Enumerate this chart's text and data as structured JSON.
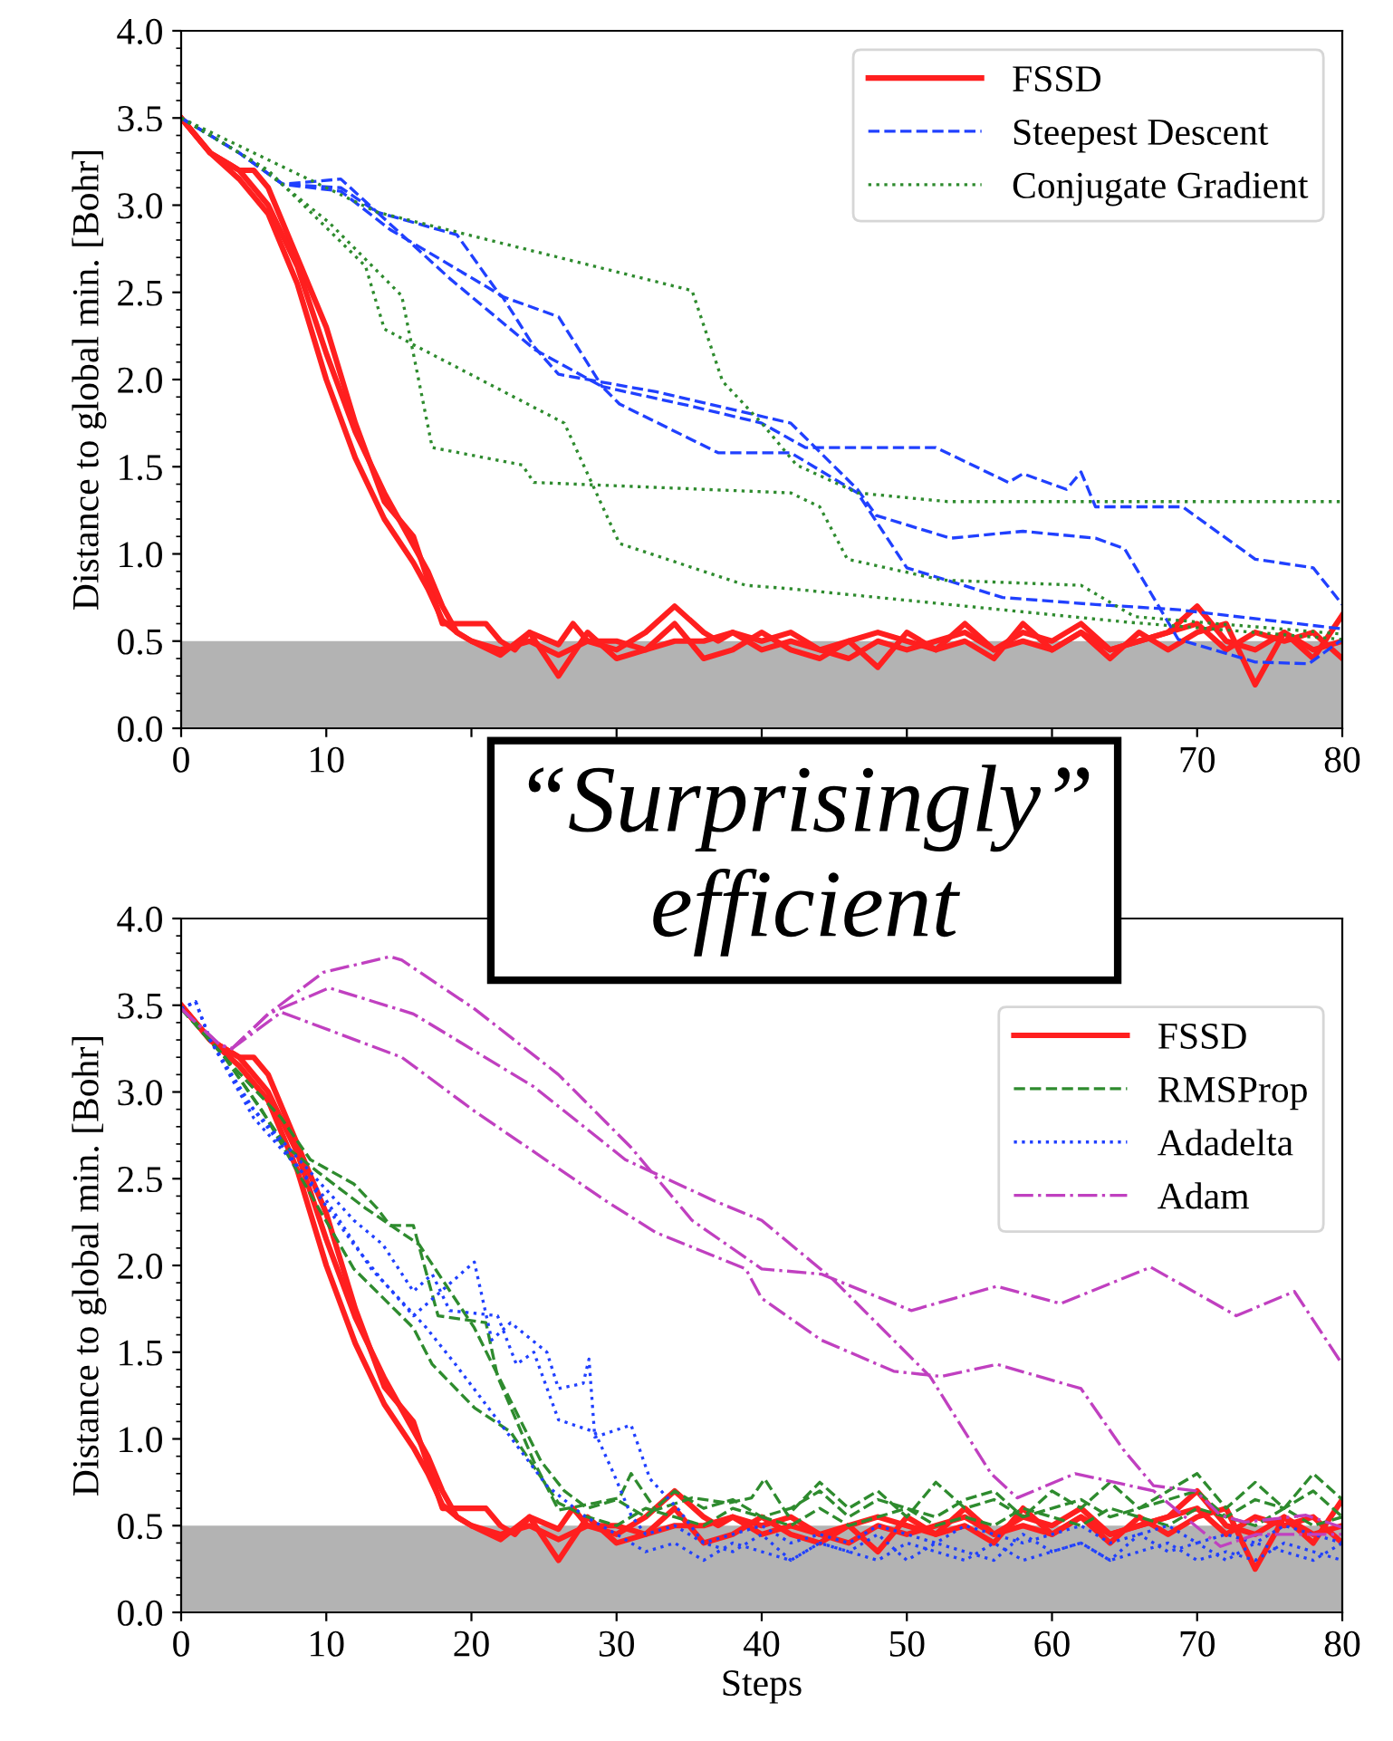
{
  "chart_data": [
    {
      "type": "line",
      "ylabel": "Distance to global min. [Bohr]",
      "xlim": [
        0,
        80
      ],
      "xticks": [
        0,
        10,
        {
          "value": 20,
          "label": null
        },
        {
          "value": 30,
          "label": null
        },
        {
          "value": 40,
          "label": null
        },
        {
          "value": 50,
          "label": null
        },
        {
          "value": 60,
          "label": null
        },
        70,
        80
      ],
      "ylim": [
        0,
        4
      ],
      "yticks": [
        {
          "value": 0,
          "label": "0.0"
        },
        0.5,
        {
          "value": 1,
          "label": "1.0"
        },
        1.5,
        {
          "value": 2,
          "label": "2.0"
        },
        2.5,
        {
          "value": 3,
          "label": "3.0"
        },
        3.5,
        {
          "value": 4,
          "label": "4.0"
        }
      ],
      "legend": "top right",
      "grid": false,
      "bands": [
        {
          "axis": "y",
          "from": 0,
          "to": 0.5,
          "color": "#b3b3b3"
        }
      ],
      "annotations": [
        "“Surprisingly”\nefficient"
      ],
      "series": [
        {
          "name": "FSSD",
          "color": "#ff1f1f",
          "line_style": "solid",
          "x": [
            0,
            2,
            4,
            5,
            6,
            8,
            10,
            12,
            14,
            15,
            16,
            17,
            18,
            20,
            21,
            22,
            23,
            24,
            26,
            27,
            28,
            30,
            32,
            34,
            36,
            37,
            38,
            40,
            42,
            44,
            46,
            48,
            50,
            52,
            54,
            56,
            58,
            60,
            62,
            64,
            66,
            68,
            70,
            72,
            74,
            76,
            78,
            80
          ],
          "values": [
            3.5,
            3.3,
            3.2,
            3.2,
            3.1,
            2.7,
            2.3,
            1.75,
            1.3,
            1.2,
            1.1,
            0.85,
            0.6,
            0.6,
            0.6,
            0.5,
            0.45,
            0.55,
            0.48,
            0.6,
            0.5,
            0.45,
            0.55,
            0.7,
            0.55,
            0.5,
            0.55,
            0.5,
            0.55,
            0.45,
            0.5,
            0.55,
            0.5,
            0.45,
            0.6,
            0.45,
            0.55,
            0.5,
            0.6,
            0.45,
            0.5,
            0.55,
            0.7,
            0.5,
            0.45,
            0.55,
            0.4,
            0.65
          ]
        },
        {
          "color": "#ff1f1f",
          "line_style": "solid",
          "x": [
            0,
            2,
            4,
            6,
            8,
            10,
            12,
            14,
            16,
            17,
            18,
            19,
            20,
            22,
            24,
            26,
            28,
            30,
            32,
            34,
            36,
            38,
            40,
            42,
            44,
            46,
            48,
            50,
            52,
            54,
            56,
            58,
            60,
            62,
            64,
            66,
            68,
            70,
            72,
            74,
            76,
            78,
            80
          ],
          "values": [
            3.5,
            3.3,
            3.15,
            2.95,
            2.55,
            2.0,
            1.55,
            1.2,
            0.95,
            0.8,
            0.62,
            0.55,
            0.5,
            0.42,
            0.55,
            0.3,
            0.55,
            0.4,
            0.45,
            0.6,
            0.4,
            0.45,
            0.55,
            0.45,
            0.4,
            0.5,
            0.35,
            0.55,
            0.45,
            0.5,
            0.4,
            0.6,
            0.45,
            0.55,
            0.4,
            0.55,
            0.45,
            0.55,
            0.6,
            0.25,
            0.55,
            0.45,
            0.5
          ]
        },
        {
          "color": "#ff1f1f",
          "line_style": "solid",
          "x": [
            0,
            2,
            4,
            6,
            8,
            10,
            12,
            14,
            16,
            17,
            18,
            19,
            20,
            22,
            24,
            26,
            28,
            30,
            32,
            34,
            36,
            38,
            40,
            42,
            44,
            46,
            48,
            50,
            52,
            54,
            56,
            58,
            60,
            62,
            64,
            66,
            68,
            70,
            72,
            74,
            76,
            78,
            80
          ],
          "values": [
            3.5,
            3.3,
            3.2,
            3.0,
            2.65,
            2.15,
            1.7,
            1.35,
            1.05,
            0.9,
            0.7,
            0.55,
            0.5,
            0.45,
            0.5,
            0.42,
            0.5,
            0.5,
            0.45,
            0.5,
            0.5,
            0.55,
            0.45,
            0.5,
            0.45,
            0.4,
            0.5,
            0.45,
            0.5,
            0.55,
            0.45,
            0.5,
            0.45,
            0.55,
            0.45,
            0.5,
            0.55,
            0.6,
            0.45,
            0.55,
            0.5,
            0.55,
            0.4
          ]
        },
        {
          "name": "Steepest Descent",
          "color": "#2040ff",
          "line_style": "dashed",
          "x": [
            0,
            4,
            7,
            11,
            13.5,
            19,
            22,
            26,
            29,
            35,
            40,
            43,
            52,
            57,
            58,
            61,
            62,
            63,
            69,
            74,
            78,
            80
          ],
          "values": [
            3.5,
            3.3,
            3.12,
            3.15,
            2.96,
            2.83,
            2.48,
            2.36,
            1.96,
            1.85,
            1.75,
            1.61,
            1.61,
            1.41,
            1.46,
            1.37,
            1.47,
            1.27,
            1.27,
            0.97,
            0.92,
            0.71
          ]
        },
        {
          "color": "#2040ff",
          "line_style": "dashed",
          "x": [
            0,
            4,
            7,
            11,
            13.5,
            18.5,
            24.4,
            29,
            30.2,
            37,
            42,
            46.6,
            50,
            56.6,
            63,
            68.7,
            80
          ],
          "values": [
            3.5,
            3.3,
            3.12,
            3.1,
            2.96,
            2.58,
            2.17,
            1.96,
            1.86,
            1.58,
            1.58,
            1.35,
            0.92,
            0.75,
            0.71,
            0.68,
            0.57
          ]
        },
        {
          "color": "#2040ff",
          "line_style": "dashed",
          "x": [
            0,
            4,
            7,
            11,
            14.4,
            22.1,
            24.3,
            26,
            32.7,
            42,
            46.6,
            47.9,
            53,
            58,
            63,
            65,
            68.7,
            74,
            77.7,
            80
          ],
          "values": [
            3.5,
            3.3,
            3.12,
            3.08,
            2.86,
            2.48,
            2.19,
            2.03,
            1.93,
            1.75,
            1.37,
            1.22,
            1.09,
            1.13,
            1.09,
            1.03,
            0.51,
            0.38,
            0.37,
            0.51
          ]
        },
        {
          "name": "Conjugate Gradient",
          "color": "#2e8b2e",
          "line_style": "dotted",
          "x": [
            0,
            13.5,
            35.2,
            37.3,
            40,
            42.4,
            46.6,
            52.8,
            80
          ],
          "values": [
            3.5,
            2.96,
            2.51,
            1.99,
            1.75,
            1.51,
            1.35,
            1.3,
            1.3
          ]
        },
        {
          "color": "#2e8b2e",
          "line_style": "dotted",
          "x": [
            0,
            5,
            10.2,
            15.2,
            17.3,
            23.5,
            24.3,
            42,
            44,
            45.9,
            52.4,
            62,
            65.7,
            80
          ],
          "values": [
            3.5,
            3.25,
            2.9,
            2.48,
            1.61,
            1.51,
            1.41,
            1.35,
            1.27,
            0.97,
            0.85,
            0.82,
            0.64,
            0.54
          ]
        },
        {
          "color": "#2e8b2e",
          "line_style": "dotted",
          "x": [
            0,
            6,
            12.7,
            14,
            16,
            26.4,
            30.2,
            38.9,
            42,
            65,
            80
          ],
          "values": [
            3.5,
            3.2,
            2.65,
            2.29,
            2.2,
            1.75,
            1.06,
            0.82,
            0.8,
            0.61,
            0.51
          ]
        }
      ]
    },
    {
      "type": "line",
      "xlabel": "Steps",
      "ylabel": "Distance to global min. [Bohr]",
      "xlim": [
        0,
        80
      ],
      "xticks": [
        0,
        10,
        20,
        30,
        40,
        50,
        60,
        70,
        80
      ],
      "ylim": [
        0,
        4
      ],
      "yticks": [
        {
          "value": 0,
          "label": "0.0"
        },
        0.5,
        {
          "value": 1,
          "label": "1.0"
        },
        1.5,
        {
          "value": 2,
          "label": "2.0"
        },
        2.5,
        {
          "value": 3,
          "label": "3.0"
        },
        3.5,
        {
          "value": 4,
          "label": "4.0"
        }
      ],
      "legend": "top right",
      "grid": false,
      "bands": [
        {
          "axis": "y",
          "from": 0,
          "to": 0.5,
          "color": "#b3b3b3"
        }
      ],
      "series": [
        {
          "name": "FSSD",
          "color": "#ff1f1f",
          "line_style": "solid",
          "x": [
            0,
            2,
            4,
            5,
            6,
            8,
            10,
            12,
            14,
            15,
            16,
            17,
            18,
            20,
            21,
            22,
            23,
            24,
            26,
            27,
            28,
            30,
            32,
            34,
            36,
            37,
            38,
            40,
            42,
            44,
            46,
            48,
            50,
            52,
            54,
            56,
            58,
            60,
            62,
            64,
            66,
            68,
            70,
            72,
            74,
            76,
            78,
            80
          ],
          "values": [
            3.5,
            3.3,
            3.2,
            3.2,
            3.1,
            2.7,
            2.3,
            1.75,
            1.3,
            1.2,
            1.1,
            0.85,
            0.6,
            0.6,
            0.6,
            0.5,
            0.45,
            0.55,
            0.48,
            0.6,
            0.5,
            0.45,
            0.55,
            0.7,
            0.55,
            0.5,
            0.55,
            0.5,
            0.55,
            0.45,
            0.5,
            0.55,
            0.5,
            0.45,
            0.6,
            0.45,
            0.55,
            0.5,
            0.6,
            0.45,
            0.5,
            0.55,
            0.7,
            0.5,
            0.45,
            0.55,
            0.4,
            0.65
          ]
        },
        {
          "color": "#ff1f1f",
          "line_style": "solid",
          "x": [
            0,
            2,
            4,
            6,
            8,
            10,
            12,
            14,
            16,
            17,
            18,
            19,
            20,
            22,
            24,
            26,
            28,
            30,
            32,
            34,
            36,
            38,
            40,
            42,
            44,
            46,
            48,
            50,
            52,
            54,
            56,
            58,
            60,
            62,
            64,
            66,
            68,
            70,
            72,
            74,
            76,
            78,
            80
          ],
          "values": [
            3.5,
            3.3,
            3.15,
            2.95,
            2.55,
            2.0,
            1.55,
            1.2,
            0.95,
            0.8,
            0.62,
            0.55,
            0.5,
            0.42,
            0.55,
            0.3,
            0.55,
            0.4,
            0.45,
            0.6,
            0.4,
            0.45,
            0.55,
            0.45,
            0.4,
            0.5,
            0.35,
            0.55,
            0.45,
            0.5,
            0.4,
            0.6,
            0.45,
            0.55,
            0.4,
            0.55,
            0.45,
            0.55,
            0.6,
            0.25,
            0.55,
            0.45,
            0.5
          ]
        },
        {
          "color": "#ff1f1f",
          "line_style": "solid",
          "x": [
            0,
            2,
            4,
            6,
            8,
            10,
            12,
            14,
            16,
            17,
            18,
            19,
            20,
            22,
            24,
            26,
            28,
            30,
            32,
            34,
            36,
            38,
            40,
            42,
            44,
            46,
            48,
            50,
            52,
            54,
            56,
            58,
            60,
            62,
            64,
            66,
            68,
            70,
            72,
            74,
            76,
            78,
            80
          ],
          "values": [
            3.5,
            3.3,
            3.2,
            3.0,
            2.65,
            2.15,
            1.7,
            1.35,
            1.05,
            0.9,
            0.7,
            0.55,
            0.5,
            0.45,
            0.5,
            0.42,
            0.5,
            0.5,
            0.45,
            0.5,
            0.5,
            0.55,
            0.45,
            0.5,
            0.45,
            0.4,
            0.5,
            0.45,
            0.5,
            0.55,
            0.45,
            0.5,
            0.45,
            0.55,
            0.45,
            0.5,
            0.55,
            0.6,
            0.45,
            0.55,
            0.5,
            0.55,
            0.4
          ]
        },
        {
          "name": "RMSProp",
          "color": "#2e8b2e",
          "line_style": "dashed",
          "x": [
            0,
            1,
            3.1,
            6.9,
            8.9,
            11.9,
            13.5,
            14.4,
            16,
            17.7,
            21,
            21.8,
            24.3,
            26,
            28.5,
            30.2,
            31,
            32.7,
            35.2,
            37.7,
            39.3,
            40.2,
            41.8,
            44,
            46,
            48,
            50,
            52,
            54,
            56,
            58,
            60,
            62,
            64,
            66,
            68,
            70,
            72,
            74,
            76,
            78,
            80
          ],
          "values": [
            3.48,
            3.4,
            3.19,
            2.85,
            2.61,
            2.47,
            2.33,
            2.23,
            2.23,
            1.71,
            1.67,
            1.36,
            0.87,
            0.59,
            0.63,
            0.66,
            0.8,
            0.59,
            0.66,
            0.63,
            0.66,
            0.77,
            0.56,
            0.75,
            0.6,
            0.7,
            0.55,
            0.75,
            0.6,
            0.65,
            0.55,
            0.7,
            0.6,
            0.75,
            0.6,
            0.7,
            0.8,
            0.6,
            0.75,
            0.6,
            0.8,
            0.65
          ]
        },
        {
          "color": "#2e8b2e",
          "line_style": "dashed",
          "x": [
            0,
            3,
            7.3,
            9.4,
            12.7,
            16.4,
            20.2,
            22.7,
            24.8,
            26.4,
            28,
            30,
            32,
            34,
            36,
            38,
            40,
            42,
            44,
            46,
            48,
            50,
            52,
            54,
            56,
            58,
            60,
            62,
            64,
            66,
            68,
            70,
            72,
            74,
            76,
            78,
            80
          ],
          "values": [
            3.48,
            3.2,
            2.68,
            2.54,
            2.33,
            2.12,
            1.64,
            1.22,
            0.87,
            0.7,
            0.6,
            0.65,
            0.55,
            0.7,
            0.6,
            0.65,
            0.55,
            0.6,
            0.7,
            0.55,
            0.65,
            0.6,
            0.55,
            0.65,
            0.7,
            0.55,
            0.6,
            0.65,
            0.55,
            0.6,
            0.65,
            0.7,
            0.55,
            0.65,
            0.6,
            0.7,
            0.55
          ]
        },
        {
          "color": "#2e8b2e",
          "line_style": "dashed",
          "x": [
            0,
            3,
            5.6,
            11.9,
            16,
            17.3,
            20.2,
            22.7,
            24.3,
            26,
            28,
            30,
            32,
            34,
            36,
            38,
            40,
            42,
            44,
            46,
            48,
            50,
            52,
            54,
            56,
            58,
            60,
            62,
            64,
            66,
            68,
            70,
            72,
            74,
            76,
            78,
            80
          ],
          "values": [
            3.48,
            3.2,
            2.89,
            1.98,
            1.64,
            1.43,
            1.18,
            1.04,
            0.84,
            0.63,
            0.55,
            0.5,
            0.6,
            0.55,
            0.5,
            0.6,
            0.55,
            0.5,
            0.6,
            0.5,
            0.55,
            0.6,
            0.5,
            0.55,
            0.5,
            0.6,
            0.55,
            0.5,
            0.6,
            0.55,
            0.5,
            0.6,
            0.55,
            0.5,
            0.6,
            0.5,
            0.55
          ]
        },
        {
          "name": "Adadelta",
          "color": "#2040ff",
          "line_style": "dotted",
          "x": [
            0,
            1,
            2,
            4.4,
            7.7,
            11.9,
            13.9,
            16,
            20.2,
            21.4,
            22.7,
            25.2,
            26,
            27.7,
            28.1,
            28.5,
            31,
            32.3,
            34.3,
            36,
            38,
            40,
            42,
            44,
            46,
            48,
            50,
            52,
            54,
            56,
            58,
            60,
            62,
            64,
            66,
            68,
            70,
            72,
            74,
            76,
            78,
            80
          ],
          "values": [
            3.48,
            3.52,
            3.3,
            2.96,
            2.61,
            2.12,
            1.91,
            1.71,
            2.02,
            1.57,
            1.67,
            1.5,
            1.29,
            1.32,
            1.46,
            1.01,
            1.08,
            0.77,
            0.59,
            0.4,
            0.35,
            0.45,
            0.3,
            0.4,
            0.35,
            0.45,
            0.3,
            0.4,
            0.35,
            0.3,
            0.45,
            0.35,
            0.4,
            0.3,
            0.45,
            0.35,
            0.4,
            0.3,
            0.4,
            0.35,
            0.3,
            0.4
          ]
        },
        {
          "color": "#2040ff",
          "line_style": "dotted",
          "x": [
            0,
            1,
            2,
            5,
            11.9,
            13.9,
            16,
            17.3,
            18.5,
            21.8,
            23.1,
            24.3,
            26,
            28.5,
            29.8,
            31,
            32,
            34,
            36,
            38,
            40,
            42,
            44,
            46,
            48,
            50,
            52,
            54,
            56,
            58,
            60,
            62,
            64,
            66,
            68,
            70,
            72,
            74,
            76,
            78,
            80
          ],
          "values": [
            3.48,
            3.52,
            3.3,
            2.9,
            2.26,
            2.12,
            1.85,
            1.95,
            1.74,
            1.71,
            1.43,
            1.5,
            1.11,
            1.04,
            0.8,
            0.56,
            0.45,
            0.5,
            0.4,
            0.45,
            0.5,
            0.4,
            0.45,
            0.4,
            0.5,
            0.45,
            0.4,
            0.5,
            0.45,
            0.4,
            0.45,
            0.5,
            0.4,
            0.45,
            0.5,
            0.4,
            0.45,
            0.4,
            0.5,
            0.45,
            0.4
          ]
        },
        {
          "color": "#2040ff",
          "line_style": "dotted",
          "x": [
            0,
            1,
            2,
            5,
            9.8,
            13.1,
            16.9,
            18.9,
            22.7,
            25.2,
            27.7,
            30,
            32,
            34,
            36,
            38,
            40,
            42,
            44,
            46,
            48,
            50,
            52,
            54,
            56,
            58,
            60,
            62,
            64,
            66,
            68,
            70,
            72,
            74,
            76,
            78,
            80
          ],
          "values": [
            3.48,
            3.52,
            3.3,
            2.85,
            2.4,
            1.98,
            1.64,
            1.43,
            1.01,
            0.73,
            0.56,
            0.45,
            0.35,
            0.4,
            0.3,
            0.4,
            0.35,
            0.3,
            0.4,
            0.35,
            0.3,
            0.4,
            0.35,
            0.3,
            0.4,
            0.3,
            0.35,
            0.4,
            0.3,
            0.35,
            0.4,
            0.3,
            0.35,
            0.3,
            0.4,
            0.35,
            0.3
          ]
        },
        {
          "name": "Adam",
          "color": "#c040c0",
          "line_style": "dashdot",
          "x": [
            0,
            2.7,
            3.5,
            6,
            9.8,
            14.4,
            15.2,
            20.2,
            26,
            31,
            35.2,
            40,
            44.1,
            50.3,
            56.2,
            60.6,
            66.8,
            72.7,
            76.7,
            80
          ],
          "values": [
            3.48,
            3.27,
            3.25,
            3.45,
            3.69,
            3.78,
            3.76,
            3.48,
            3.1,
            2.68,
            2.26,
            1.98,
            1.95,
            1.74,
            1.88,
            1.78,
            1.99,
            1.71,
            1.85,
            1.43
          ]
        },
        {
          "color": "#c040c0",
          "line_style": "dashdot",
          "x": [
            0,
            2.7,
            3.5,
            6,
            10.2,
            16,
            24.3,
            30.6,
            36.8,
            40,
            44.9,
            51.6,
            55.8,
            57.6,
            61.6,
            67,
            71.6,
            74.1,
            80
          ],
          "values": [
            3.48,
            3.27,
            3.25,
            3.45,
            3.6,
            3.45,
            3.03,
            2.61,
            2.37,
            2.26,
            1.92,
            1.36,
            0.8,
            0.66,
            0.8,
            0.7,
            0.38,
            0.45,
            0.45
          ]
        },
        {
          "color": "#c040c0",
          "line_style": "dashdot",
          "x": [
            0,
            2.7,
            3.5,
            6.9,
            15.2,
            20.2,
            29.3,
            32.7,
            38.9,
            40,
            44.1,
            49.1,
            52.4,
            56.2,
            62,
            64.9,
            67,
            69.9,
            71.6,
            73.3,
            77.5,
            80
          ],
          "values": [
            3.48,
            3.27,
            3.25,
            3.46,
            3.2,
            2.89,
            2.37,
            2.19,
            1.98,
            1.81,
            1.57,
            1.39,
            1.36,
            1.43,
            1.29,
            0.94,
            0.73,
            0.7,
            0.56,
            0.52,
            0.56,
            0.49
          ]
        }
      ]
    }
  ]
}
